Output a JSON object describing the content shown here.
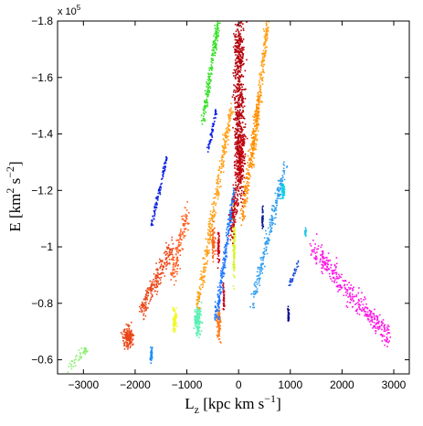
{
  "chart_data": {
    "type": "scatter",
    "xlabel": {
      "base": "L",
      "sub": "z",
      "rest": " [kpc km s",
      "sup": "−1",
      "end": "]"
    },
    "ylabel": {
      "base": "E [km",
      "sup1": "2",
      "mid": " s",
      "sup2": "−2",
      "end": "]"
    },
    "y_multiplier": {
      "base": "x 10",
      "exp": "5"
    },
    "xlim": [
      -3500,
      3300
    ],
    "ylim": [
      -0.55,
      -1.8
    ],
    "xticks": [
      -3000,
      -2000,
      -1000,
      0,
      1000,
      2000,
      3000
    ],
    "xtick_labels": [
      "−3000",
      "−2000",
      "−1000",
      "0",
      "1000",
      "2000",
      "3000"
    ],
    "yticks": [
      -1.8,
      -1.6,
      -1.4,
      -1.2,
      -1.0,
      -0.8,
      -0.6
    ],
    "ytick_labels": [
      "−1.8",
      "−1.6",
      "−1.4",
      "−1.2",
      "−1",
      "−0.8",
      "−0.6"
    ],
    "grid": false,
    "series": [
      {
        "color": "#8cf06e",
        "shape": "streak",
        "x": [
          -3300,
          -2950
        ],
        "y": [
          -0.57,
          -0.64
        ],
        "w": 0.035,
        "density": 45
      },
      {
        "color": "#eb4618",
        "shape": "blob",
        "cx": -2150,
        "cy": -0.68,
        "rx": 0.13,
        "ry": 0.038,
        "density": 160
      },
      {
        "color": "#eb4618",
        "shape": "streak",
        "x": [
          -1900,
          -1300
        ],
        "y": [
          -0.78,
          -1.0
        ],
        "w": 0.07,
        "density": 220
      },
      {
        "color": "#ff5e1f",
        "shape": "streak",
        "x": [
          -1300,
          -1000
        ],
        "y": [
          -0.9,
          -1.12
        ],
        "w": 0.08,
        "density": 140
      },
      {
        "color": "#1e90ff",
        "shape": "blob",
        "cx": -1700,
        "cy": -0.62,
        "rx": 0.03,
        "ry": 0.025,
        "density": 45
      },
      {
        "color": "#f0fa28",
        "shape": "blob",
        "cx": -1250,
        "cy": -0.74,
        "rx": 0.05,
        "ry": 0.045,
        "density": 80
      },
      {
        "color": "#5af0b4",
        "shape": "blob",
        "cx": -800,
        "cy": -0.74,
        "rx": 0.09,
        "ry": 0.05,
        "density": 140
      },
      {
        "color": "#0a1ee6",
        "shape": "streak",
        "x": [
          -1700,
          -1400
        ],
        "y": [
          -1.08,
          -1.32
        ],
        "w": 0.03,
        "density": 90
      },
      {
        "color": "#0a1ee6",
        "shape": "streak",
        "x": [
          -600,
          -450
        ],
        "y": [
          -1.35,
          -1.48
        ],
        "w": 0.025,
        "density": 55
      },
      {
        "color": "#ffa014",
        "shape": "streak",
        "x": [
          -800,
          -150
        ],
        "y": [
          -0.8,
          -1.5
        ],
        "w": 0.06,
        "density": 320
      },
      {
        "color": "#ff7814",
        "shape": "blob",
        "cx": -400,
        "cy": -0.73,
        "rx": 0.06,
        "ry": 0.06,
        "density": 90
      },
      {
        "color": "#ff6414",
        "shape": "blob",
        "cx": -500,
        "cy": -1.02,
        "rx": 0.05,
        "ry": 0.055,
        "density": 70
      },
      {
        "color": "#1e78ff",
        "shape": "streak",
        "x": [
          -450,
          -100
        ],
        "y": [
          -0.75,
          -1.2
        ],
        "w": 0.05,
        "density": 260
      },
      {
        "color": "#d20014",
        "shape": "blob",
        "cx": -400,
        "cy": -1.0,
        "rx": 0.025,
        "ry": 0.06,
        "density": 60
      },
      {
        "color": "#d20014",
        "shape": "blob",
        "cx": -300,
        "cy": -0.82,
        "rx": 0.02,
        "ry": 0.05,
        "density": 40
      },
      {
        "color": "#d7f532",
        "shape": "blob",
        "cx": -100,
        "cy": -1.0,
        "rx": 0.035,
        "ry": 0.12,
        "density": 130
      },
      {
        "color": "#37e128",
        "shape": "streak",
        "x": [
          -700,
          -400
        ],
        "y": [
          -1.45,
          -1.8
        ],
        "w": 0.05,
        "density": 200
      },
      {
        "color": "#ffa014",
        "shape": "streak",
        "x": [
          250,
          550
        ],
        "y": [
          -1.3,
          -1.8
        ],
        "w": 0.06,
        "density": 250
      },
      {
        "color": "#ff8c00",
        "shape": "streak",
        "x": [
          50,
          400
        ],
        "y": [
          -1.1,
          -1.55
        ],
        "w": 0.06,
        "density": 220
      },
      {
        "color": "#32a0f0",
        "shape": "streak",
        "x": [
          250,
          900
        ],
        "y": [
          -0.8,
          -1.3
        ],
        "w": 0.05,
        "density": 240
      },
      {
        "color": "#00d2e6",
        "shape": "blob",
        "cx": 850,
        "cy": -1.2,
        "rx": 0.04,
        "ry": 0.03,
        "density": 50
      },
      {
        "color": "#0a1e96",
        "shape": "blob",
        "cx": 450,
        "cy": -1.1,
        "rx": 0.02,
        "ry": 0.04,
        "density": 40
      },
      {
        "color": "#1e50dc",
        "shape": "streak",
        "x": [
          950,
          1150
        ],
        "y": [
          -0.86,
          -0.95
        ],
        "w": 0.02,
        "density": 35
      },
      {
        "color": "#0a0a8c",
        "shape": "blob",
        "cx": 950,
        "cy": -0.76,
        "rx": 0.02,
        "ry": 0.025,
        "density": 35
      },
      {
        "color": "#1ec8e6",
        "shape": "blob",
        "cx": 1280,
        "cy": -1.05,
        "rx": 0.02,
        "ry": 0.02,
        "density": 20
      },
      {
        "color": "#ff14e6",
        "shape": "streak",
        "x": [
          1400,
          2900
        ],
        "y": [
          -1.0,
          -0.68
        ],
        "w": 0.07,
        "density": 360
      },
      {
        "color": "#b4000a",
        "shape": "streak",
        "x": [
          0,
          0
        ],
        "y": [
          -1.2,
          -1.8
        ],
        "w": 0.14,
        "density": 700
      },
      {
        "color": "#c8000a",
        "shape": "streak",
        "x": [
          -150,
          100
        ],
        "y": [
          -1.05,
          -1.4
        ],
        "w": 0.09,
        "density": 200
      }
    ]
  }
}
